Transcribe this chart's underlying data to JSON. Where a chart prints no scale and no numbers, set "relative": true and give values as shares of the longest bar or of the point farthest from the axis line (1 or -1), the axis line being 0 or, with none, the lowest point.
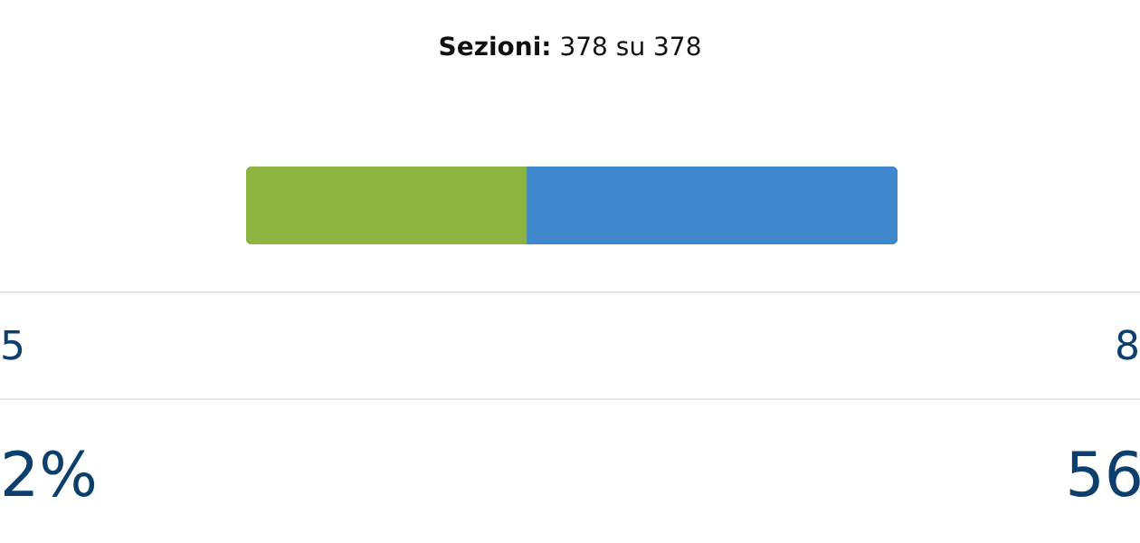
{
  "chart_data": {
    "type": "bar",
    "orientation": "horizontal",
    "stacked": true,
    "relative": true,
    "title": "Sezioni: 378 su 378",
    "categories": [
      null
    ],
    "series": [
      {
        "color": "#8bb441",
        "values": [
          0.43
        ]
      },
      {
        "color": "#3f88cc",
        "values": [
          0.57
        ]
      }
    ],
    "annotations": [
      "5",
      "2%",
      "8",
      "56"
    ]
  }
}
